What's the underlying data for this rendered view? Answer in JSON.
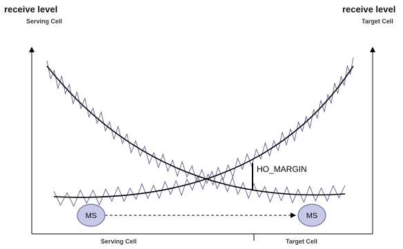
{
  "left_axis": {
    "title": "receive level",
    "subtitle": "Serving Cell"
  },
  "right_axis": {
    "title": "receive level",
    "subtitle": "Target Cell"
  },
  "bottom": {
    "left_label": "Serving Cell",
    "right_label": "Target Cell"
  },
  "margin_label": "HO_MARGIN",
  "ms_start": "MS",
  "ms_end": "MS",
  "colors": {
    "signal": "#5a5a8a",
    "trend": "#000000",
    "ms_fill": "#c8c8e8",
    "ms_stroke": "#6a6a9a"
  }
}
